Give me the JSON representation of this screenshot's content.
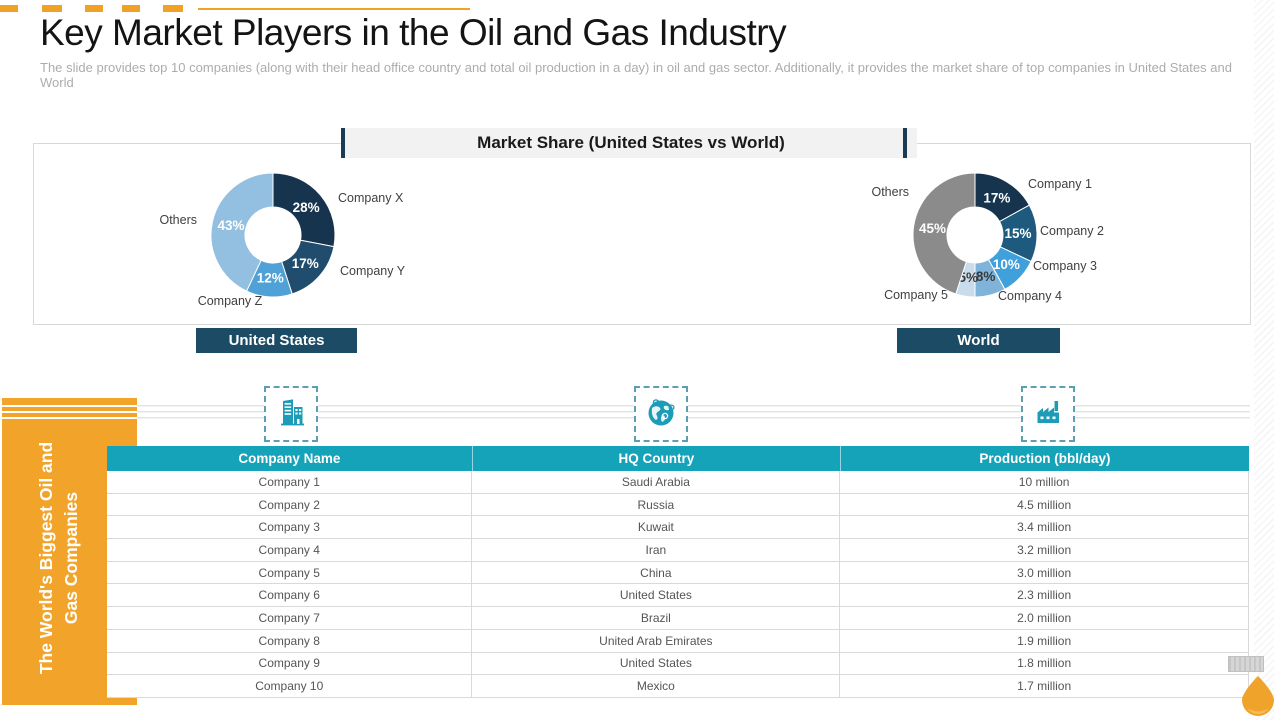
{
  "slide": {
    "title": "Key Market Players in the Oil and Gas Industry",
    "subtitle": "The slide provides top 10 companies (along with their head office country and total oil production in a day) in oil and gas sector. Additionally, it provides the market share of top companies in United States and World"
  },
  "market_share": {
    "header": "Market Share (United States vs World)",
    "us_label": "United States",
    "world_label": "World"
  },
  "chart_data": [
    {
      "type": "pie",
      "subtype": "donut",
      "title": "United States",
      "labels": [
        "Company X",
        "Company Y",
        "Company Z",
        "Others"
      ],
      "values": [
        28,
        17,
        12,
        43
      ],
      "value_suffix": "%",
      "colors": [
        "#17344E",
        "#204C6D",
        "#4FA1D7",
        "#93C0E0"
      ],
      "value_label_colors": [
        "#FFFFFF",
        "#FFFFFF",
        "#FFFFFF",
        "#FFFFFF"
      ],
      "legend_position": "around-slices"
    },
    {
      "type": "pie",
      "subtype": "donut",
      "title": "World",
      "labels": [
        "Company 1",
        "Company 2",
        "Company 3",
        "Company 4",
        "Company 5",
        "Others"
      ],
      "values": [
        17,
        15,
        10,
        8,
        5,
        45
      ],
      "value_suffix": "%",
      "colors": [
        "#17344E",
        "#1D5A7E",
        "#3FA0DB",
        "#7FB3DA",
        "#C9DCEC",
        "#8B8B8B"
      ],
      "value_label_colors": [
        "#FFFFFF",
        "#FFFFFF",
        "#FFFFFF",
        "#3A3A3A",
        "#3A3A3A",
        "#FFFFFF"
      ],
      "legend_position": "around-slices"
    }
  ],
  "icons": {
    "building": "building-icon",
    "globe": "globe-icon",
    "factory": "factory-icon",
    "oil_drop": "oil-drop-icon"
  },
  "sidebar": {
    "vertical_label": "The World's Biggest Oil and Gas Companies"
  },
  "table": {
    "columns": [
      "Company Name",
      "HQ Country",
      "Production (bbl/day)"
    ],
    "rows": [
      [
        "Company 1",
        "Saudi Arabia",
        "10 million"
      ],
      [
        "Company 2",
        "Russia",
        "4.5 million"
      ],
      [
        "Company 3",
        "Kuwait",
        "3.4 million"
      ],
      [
        "Company 4",
        "Iran",
        "3.2 million"
      ],
      [
        "Company 5",
        "China",
        "3.0 million"
      ],
      [
        "Company 6",
        "United States",
        "2.3 million"
      ],
      [
        "Company 7",
        "Brazil",
        "2.0 million"
      ],
      [
        "Company 8",
        "United Arab Emirates",
        "1.9 million"
      ],
      [
        "Company 9",
        "United States",
        "1.8 million"
      ],
      [
        "Company 10",
        "Mexico",
        "1.7 million"
      ]
    ]
  },
  "colors": {
    "accent_orange": "#F2A42A",
    "table_header_teal": "#15A3B9",
    "banner_navy": "#1C4B66",
    "icon_teal": "#1D9CB7"
  }
}
